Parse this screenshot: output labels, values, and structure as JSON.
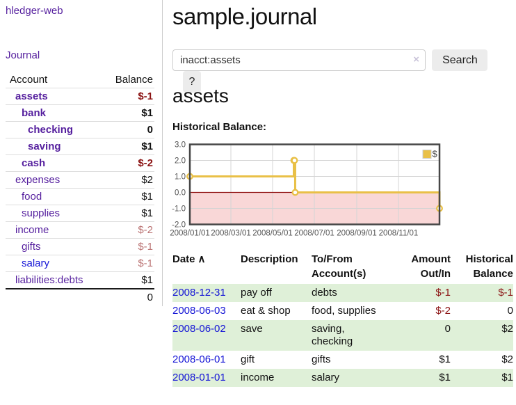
{
  "app": {
    "brand": "hledger-web",
    "nav_journal": "Journal"
  },
  "colors": {
    "link_purple": "#551f9e",
    "link_blue": "#1414d6",
    "negative_strong": "#8b1313",
    "negative_muted": "#bb7474",
    "row_stripe_green": "#dff0d8",
    "chart_series_gold": "#e9c047",
    "chart_negative_zone": "#f9d7d7",
    "chart_zero_line": "#8f1111"
  },
  "sidebar": {
    "header": {
      "account": "Account",
      "balance": "Balance"
    },
    "accounts": [
      {
        "name": "assets",
        "indent": 1,
        "balance": "$-1",
        "bold": true,
        "balance_class": "neg-strong",
        "link": "purple"
      },
      {
        "name": "bank",
        "indent": 2,
        "balance": "$1",
        "bold": true,
        "balance_class": "",
        "link": "purple"
      },
      {
        "name": "checking",
        "indent": 3,
        "balance": "0",
        "bold": true,
        "balance_class": "",
        "link": "purple"
      },
      {
        "name": "saving",
        "indent": 3,
        "balance": "$1",
        "bold": true,
        "balance_class": "",
        "link": "purple"
      },
      {
        "name": "cash",
        "indent": 2,
        "balance": "$-2",
        "bold": true,
        "balance_class": "neg-strong",
        "link": "purple"
      },
      {
        "name": "expenses",
        "indent": 1,
        "balance": "$2",
        "bold": false,
        "balance_class": "",
        "link": "purple"
      },
      {
        "name": "food",
        "indent": 2,
        "balance": "$1",
        "bold": false,
        "balance_class": "",
        "link": "purple"
      },
      {
        "name": "supplies",
        "indent": 2,
        "balance": "$1",
        "bold": false,
        "balance_class": "",
        "link": "purple"
      },
      {
        "name": "income",
        "indent": 1,
        "balance": "$-2",
        "bold": false,
        "balance_class": "neg-muted",
        "link": "purple"
      },
      {
        "name": "gifts",
        "indent": 2,
        "balance": "$-1",
        "bold": false,
        "balance_class": "neg-muted",
        "link": "purple"
      },
      {
        "name": "salary",
        "indent": 2,
        "balance": "$-1",
        "bold": false,
        "balance_class": "neg-muted",
        "link": "blue"
      },
      {
        "name": "liabilities:debts",
        "indent": 1,
        "balance": "$1",
        "bold": false,
        "balance_class": "",
        "link": "purple"
      }
    ],
    "total": "0"
  },
  "header": {
    "title": "sample.journal"
  },
  "search": {
    "value": "inacct:assets",
    "clear_icon": "×",
    "button_label": "Search",
    "help_label": "?"
  },
  "account_page": {
    "heading": "assets",
    "chart_title": "Historical Balance:"
  },
  "chart_data": {
    "type": "line",
    "step": true,
    "title": "Historical Balance",
    "series": [
      {
        "name": "$",
        "points": [
          {
            "date": "2008-01-01",
            "value": 1
          },
          {
            "date": "2008-06-01",
            "value": 2
          },
          {
            "date": "2008-06-02",
            "value": 2
          },
          {
            "date": "2008-06-03",
            "value": 0
          },
          {
            "date": "2008-12-31",
            "value": -1
          }
        ]
      }
    ],
    "x_range": [
      "2008-01-01",
      "2008-12-31"
    ],
    "x_ticks": [
      "2008/01/01",
      "2008/03/01",
      "2008/05/01",
      "2008/07/01",
      "2008/09/01",
      "2008/11/01"
    ],
    "y_range": [
      -2,
      3
    ],
    "y_ticks": [
      "3.0",
      "2.0",
      "1.0",
      "0.0",
      "-1.0",
      "-2.0"
    ],
    "legend": {
      "label": "$",
      "position": "top-right"
    },
    "grid": true,
    "negative_region_below": 0
  },
  "register": {
    "headers": [
      {
        "label": "Date",
        "sort_icon": "∧",
        "align": "left"
      },
      {
        "label": "Description",
        "align": "left"
      },
      {
        "label": "To/From Account(s)",
        "align": "left"
      },
      {
        "label": "Amount Out/In",
        "align": "right"
      },
      {
        "label": "Historical Balance",
        "align": "right"
      }
    ],
    "rows": [
      {
        "date": "2008-12-31",
        "description": "pay off",
        "accounts": "debts",
        "amount": "$-1",
        "amount_negative": true,
        "balance": "$-1",
        "balance_negative": true
      },
      {
        "date": "2008-06-03",
        "description": "eat & shop",
        "accounts": "food, supplies",
        "amount": "$-2",
        "amount_negative": true,
        "balance": "0",
        "balance_negative": false
      },
      {
        "date": "2008-06-02",
        "description": "save",
        "accounts": "saving, checking",
        "amount": "0",
        "amount_negative": false,
        "balance": "$2",
        "balance_negative": false
      },
      {
        "date": "2008-06-01",
        "description": "gift",
        "accounts": "gifts",
        "amount": "$1",
        "amount_negative": false,
        "balance": "$2",
        "balance_negative": false
      },
      {
        "date": "2008-01-01",
        "description": "income",
        "accounts": "salary",
        "amount": "$1",
        "amount_negative": false,
        "balance": "$1",
        "balance_negative": false
      }
    ]
  }
}
